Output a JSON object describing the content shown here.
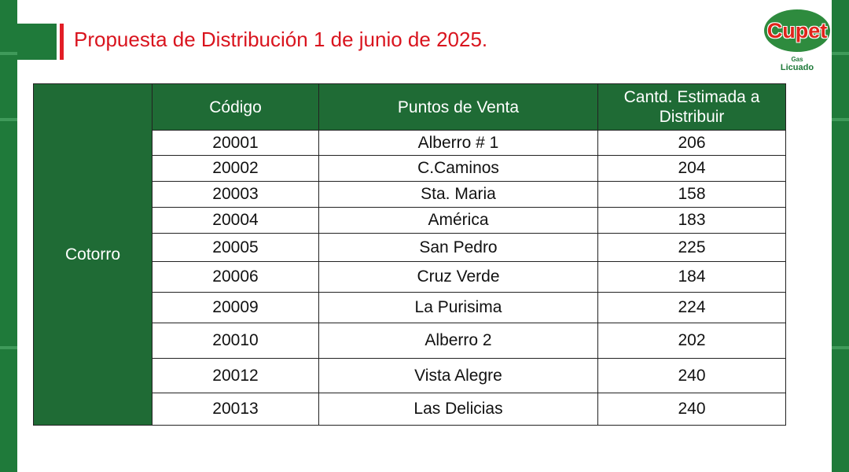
{
  "title": "Propuesta de Distribución 1 de junio de  2025.",
  "logo": {
    "brand": "Cupet",
    "line1": "Gas",
    "line2": "Licuado"
  },
  "colors": {
    "brand_green": "#1f6b35",
    "title_red": "#d9141e"
  },
  "table": {
    "group": "Cotorro",
    "headers": {
      "code": "Código",
      "name": "Puntos de Venta",
      "qty_line1": "Cantd. Estimada a",
      "qty_line2": "Distribuir"
    },
    "rows": [
      {
        "code": "20001",
        "name": "Alberro # 1",
        "qty": "206"
      },
      {
        "code": "20002",
        "name": "C.Caminos",
        "qty": "204"
      },
      {
        "code": "20003",
        "name": "Sta. Maria",
        "qty": "158"
      },
      {
        "code": "20004",
        "name": "América",
        "qty": "183"
      },
      {
        "code": "20005",
        "name": "San Pedro",
        "qty": "225"
      },
      {
        "code": "20006",
        "name": "Cruz Verde",
        "qty": "184"
      },
      {
        "code": "20009",
        "name": "La Purisima",
        "qty": "224"
      },
      {
        "code": "20010",
        "name": "Alberro 2",
        "qty": "202"
      },
      {
        "code": "20012",
        "name": "Vista Alegre",
        "qty": "240"
      },
      {
        "code": "20013",
        "name": "Las Delicias",
        "qty": "240"
      }
    ]
  }
}
